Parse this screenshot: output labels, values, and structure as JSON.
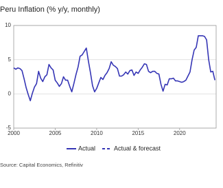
{
  "chart_data": {
    "type": "line",
    "title": "Peru Inflation (% y/y, monthly)",
    "source": "Source: Capital Economics, Refinitiv",
    "x": [
      2000,
      2000.25,
      2000.5,
      2000.75,
      2001,
      2001.25,
      2001.5,
      2001.75,
      2002,
      2002.25,
      2002.5,
      2002.75,
      2003,
      2003.25,
      2003.5,
      2003.75,
      2004,
      2004.25,
      2004.5,
      2004.75,
      2005,
      2005.25,
      2005.5,
      2005.75,
      2006,
      2006.25,
      2006.5,
      2006.75,
      2007,
      2007.25,
      2007.5,
      2007.75,
      2008,
      2008.25,
      2008.5,
      2008.75,
      2009,
      2009.25,
      2009.5,
      2009.75,
      2010,
      2010.25,
      2010.5,
      2010.75,
      2011,
      2011.25,
      2011.5,
      2011.75,
      2012,
      2012.25,
      2012.5,
      2012.75,
      2013,
      2013.25,
      2013.5,
      2013.75,
      2014,
      2014.25,
      2014.5,
      2014.75,
      2015,
      2015.25,
      2015.5,
      2015.75,
      2016,
      2016.25,
      2016.5,
      2016.75,
      2017,
      2017.25,
      2017.5,
      2017.75,
      2018,
      2018.25,
      2018.5,
      2018.75,
      2019,
      2019.25,
      2019.5,
      2019.75,
      2020,
      2020.25,
      2020.5,
      2020.75,
      2021,
      2021.25,
      2021.5,
      2021.75,
      2022,
      2022.25,
      2022.5,
      2022.75,
      2023,
      2023.25,
      2023.5,
      2023.75,
      2024,
      2024.25
    ],
    "series": [
      {
        "name": "Actual",
        "color": "#3535b5",
        "dashed": false,
        "values": [
          3.8,
          3.6,
          3.8,
          3.7,
          3.4,
          2.2,
          0.9,
          -0.1,
          -1.0,
          0.1,
          1.0,
          1.5,
          3.3,
          2.3,
          1.8,
          2.5,
          2.8,
          4.3,
          3.8,
          3.5,
          2.0,
          1.6,
          1.1,
          1.5,
          2.5,
          2.0,
          2.0,
          1.1,
          0.3,
          1.5,
          2.8,
          3.9,
          5.5,
          5.7,
          6.2,
          6.7,
          4.8,
          3.1,
          1.2,
          0.3,
          0.8,
          1.6,
          2.4,
          2.1,
          2.7,
          3.1,
          3.7,
          4.7,
          4.2,
          4.0,
          3.7,
          2.6,
          2.6,
          2.8,
          3.2,
          2.9,
          3.4,
          3.5,
          2.7,
          3.2,
          3.0,
          3.5,
          3.9,
          4.4,
          4.3,
          3.3,
          3.1,
          3.3,
          3.3,
          3.0,
          2.9,
          1.4,
          0.4,
          1.4,
          1.3,
          2.2,
          2.2,
          2.3,
          1.9,
          1.9,
          1.8,
          1.7,
          1.8,
          2.0,
          2.6,
          3.2,
          5.0,
          6.4,
          6.8,
          8.5,
          8.5,
          8.5,
          8.4,
          7.9,
          5.0,
          3.2,
          3.3,
          2.0
        ]
      },
      {
        "name": "Actual & forecast",
        "color": "#3535b5",
        "dashed": true,
        "values": [
          null,
          null,
          null,
          null,
          null,
          null,
          null,
          null,
          null,
          null,
          null,
          null,
          null,
          null,
          null,
          null,
          null,
          null,
          null,
          null,
          null,
          null,
          null,
          null,
          null,
          null,
          null,
          null,
          null,
          null,
          null,
          null,
          null,
          null,
          null,
          null,
          null,
          null,
          null,
          null,
          null,
          null,
          null,
          null,
          null,
          null,
          null,
          null,
          null,
          null,
          null,
          null,
          null,
          null,
          null,
          null,
          null,
          null,
          null,
          null,
          null,
          null,
          null,
          null,
          null,
          null,
          null,
          null,
          null,
          null,
          null,
          null,
          null,
          null,
          null,
          null,
          null,
          null,
          null,
          null,
          null,
          null,
          null,
          null,
          null,
          null,
          null,
          null,
          null,
          null,
          null,
          null,
          null,
          null,
          null,
          null,
          null,
          null
        ]
      }
    ],
    "xlim": [
      2000,
      2024.4
    ],
    "xticks": [
      2000,
      2005,
      2010,
      2015,
      2020
    ],
    "ylim": [
      -5,
      10
    ],
    "yticks": [
      -5,
      0,
      5,
      10
    ],
    "grid": true
  }
}
